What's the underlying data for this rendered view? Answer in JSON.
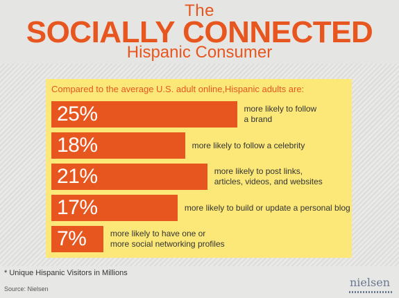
{
  "header": {
    "title_top": "The",
    "title_main": "SOCIALLY CONNECTED",
    "title_sub": "Hispanic Consumer"
  },
  "chart_data": {
    "type": "bar",
    "intro": "Compared to the average U.S. adult online,Hispanic adults are:",
    "values": [
      25,
      18,
      21,
      17,
      7
    ],
    "value_labels": [
      "25%",
      "18%",
      "21%",
      "17%",
      "7%"
    ],
    "categories": [
      "more likely to follow\na brand",
      "more likely to follow a celebrity",
      "more likely to post links,\narticles, videos, and websites",
      "more likely to build or update a personal blog",
      "more likely to have one or\nmore social networking profiles"
    ]
  },
  "footer": {
    "footnote": "* Unique Hispanic Visitors in Millions",
    "source": "Source: Nielsen",
    "logo": "nielsen"
  },
  "colors": {
    "accent": "#e8561f",
    "panel": "#fbe878"
  }
}
